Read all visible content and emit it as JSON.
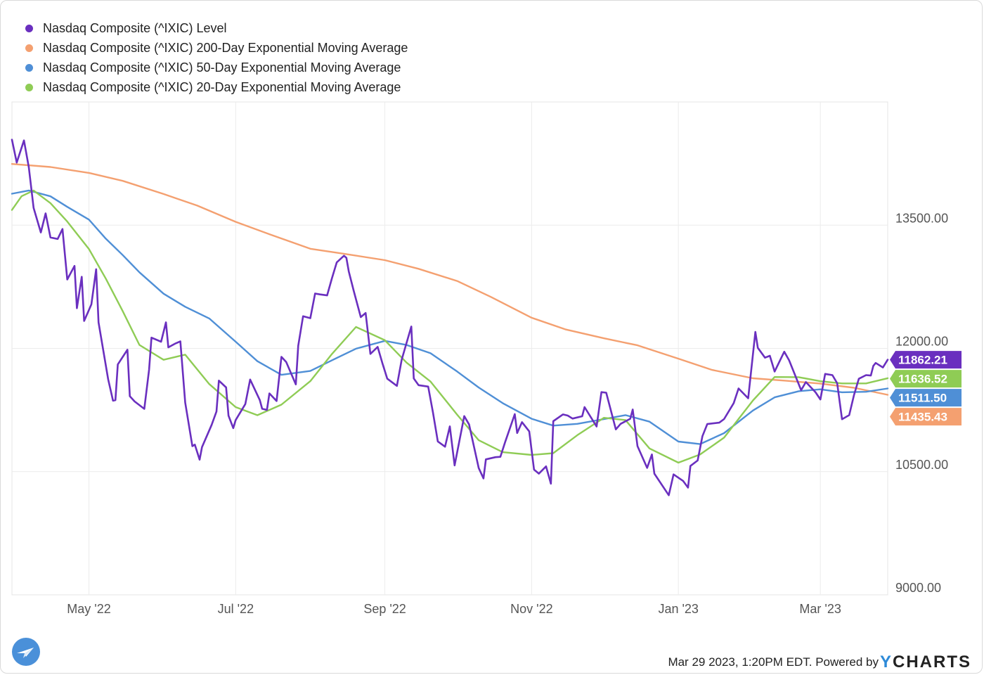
{
  "legend": [
    {
      "label": "Nasdaq Composite (^IXIC) Level",
      "color": "#6a2fbf"
    },
    {
      "label": "Nasdaq Composite (^IXIC) 200-Day Exponential Moving Average",
      "color": "#f4a070"
    },
    {
      "label": "Nasdaq Composite (^IXIC) 50-Day Exponential Moving Average",
      "color": "#4f8fd6"
    },
    {
      "label": "Nasdaq Composite (^IXIC) 20-Day Exponential Moving Average",
      "color": "#8fcc55"
    }
  ],
  "footer": {
    "timestamp": "Mar 29 2023, 1:20PM EDT. Powered by ",
    "brand_y": "Y",
    "brand_rest": "CHARTS"
  },
  "chart_data": {
    "type": "line",
    "title": "",
    "xlabel": "",
    "ylabel": "",
    "x_range": [
      "2022-03-30",
      "2023-03-29"
    ],
    "ylim": [
      9000,
      15000
    ],
    "yticks": [
      9000,
      10500,
      12000,
      13500
    ],
    "ytick_labels": [
      "9000.00",
      "10500.00",
      "12000.00",
      "13500.00"
    ],
    "xticks": [
      "2022-05-01",
      "2022-07-01",
      "2022-09-01",
      "2022-11-01",
      "2023-01-01",
      "2023-03-01"
    ],
    "xtick_labels": [
      "May '22",
      "Jul '22",
      "Sep '22",
      "Nov '22",
      "Jan '23",
      "Mar '23"
    ],
    "grid": true,
    "legend_position": "top-left",
    "series": [
      {
        "name": "Nasdaq Composite (^IXIC) Level",
        "color": "#6a2fbf",
        "last_label": "11862.21",
        "points": [
          [
            "2022-03-30",
            14540
          ],
          [
            "2022-04-01",
            14262
          ],
          [
            "2022-04-04",
            14532
          ],
          [
            "2022-04-06",
            14204
          ],
          [
            "2022-04-08",
            13711
          ],
          [
            "2022-04-11",
            13411
          ],
          [
            "2022-04-13",
            13643
          ],
          [
            "2022-04-15",
            13351
          ],
          [
            "2022-04-18",
            13332
          ],
          [
            "2022-04-20",
            13453
          ],
          [
            "2022-04-22",
            12839
          ],
          [
            "2022-04-25",
            13004
          ],
          [
            "2022-04-26",
            12490
          ],
          [
            "2022-04-28",
            12871
          ],
          [
            "2022-04-29",
            12334
          ],
          [
            "2022-05-02",
            12536
          ],
          [
            "2022-05-04",
            12964
          ],
          [
            "2022-05-05",
            12317
          ],
          [
            "2022-05-09",
            11623
          ],
          [
            "2022-05-11",
            11364
          ],
          [
            "2022-05-12",
            11370
          ],
          [
            "2022-05-13",
            11805
          ],
          [
            "2022-05-17",
            11984
          ],
          [
            "2022-05-18",
            11418
          ],
          [
            "2022-05-20",
            11354
          ],
          [
            "2022-05-24",
            11264
          ],
          [
            "2022-05-26",
            11740
          ],
          [
            "2022-05-27",
            12131
          ],
          [
            "2022-05-31",
            12081
          ],
          [
            "2022-06-02",
            12317
          ],
          [
            "2022-06-03",
            12013
          ],
          [
            "2022-06-06",
            12061
          ],
          [
            "2022-06-08",
            12086
          ],
          [
            "2022-06-10",
            11340
          ],
          [
            "2022-06-13",
            10810
          ],
          [
            "2022-06-14",
            10828
          ],
          [
            "2022-06-16",
            10646
          ],
          [
            "2022-06-17",
            10798
          ],
          [
            "2022-06-21",
            11069
          ],
          [
            "2022-06-23",
            11232
          ],
          [
            "2022-06-24",
            11608
          ],
          [
            "2022-06-27",
            11525
          ],
          [
            "2022-06-28",
            11182
          ],
          [
            "2022-06-30",
            11029
          ],
          [
            "2022-07-01",
            11128
          ],
          [
            "2022-07-05",
            11322
          ],
          [
            "2022-07-07",
            11621
          ],
          [
            "2022-07-11",
            11372
          ],
          [
            "2022-07-12",
            11265
          ],
          [
            "2022-07-14",
            11251
          ],
          [
            "2022-07-15",
            11452
          ],
          [
            "2022-07-18",
            11360
          ],
          [
            "2022-07-20",
            11897
          ],
          [
            "2022-07-22",
            11834
          ],
          [
            "2022-07-26",
            11562
          ],
          [
            "2022-07-27",
            12032
          ],
          [
            "2022-07-29",
            12391
          ],
          [
            "2022-08-01",
            12368
          ],
          [
            "2022-08-03",
            12668
          ],
          [
            "2022-08-05",
            12657
          ],
          [
            "2022-08-08",
            12645
          ],
          [
            "2022-08-10",
            12855
          ],
          [
            "2022-08-12",
            13047
          ],
          [
            "2022-08-15",
            13128
          ],
          [
            "2022-08-16",
            13103
          ],
          [
            "2022-08-17",
            12938
          ],
          [
            "2022-08-19",
            12706
          ],
          [
            "2022-08-22",
            12381
          ],
          [
            "2022-08-24",
            12431
          ],
          [
            "2022-08-26",
            11933
          ],
          [
            "2022-08-29",
            12018
          ],
          [
            "2022-08-31",
            11816
          ],
          [
            "2022-09-02",
            11631
          ],
          [
            "2022-09-06",
            11544
          ],
          [
            "2022-09-08",
            11862
          ],
          [
            "2022-09-12",
            12266
          ],
          [
            "2022-09-13",
            11634
          ],
          [
            "2022-09-15",
            11552
          ],
          [
            "2022-09-19",
            11535
          ],
          [
            "2022-09-21",
            11220
          ],
          [
            "2022-09-23",
            10868
          ],
          [
            "2022-09-26",
            10803
          ],
          [
            "2022-09-28",
            11051
          ],
          [
            "2022-09-30",
            10576
          ],
          [
            "2022-10-04",
            11176
          ],
          [
            "2022-10-06",
            11074
          ],
          [
            "2022-10-10",
            10543
          ],
          [
            "2022-10-12",
            10417
          ],
          [
            "2022-10-13",
            10649
          ],
          [
            "2022-10-17",
            10676
          ],
          [
            "2022-10-19",
            10680
          ],
          [
            "2022-10-21",
            10860
          ],
          [
            "2022-10-25",
            11200
          ],
          [
            "2022-10-26",
            10970
          ],
          [
            "2022-10-28",
            11102
          ],
          [
            "2022-10-31",
            10989
          ],
          [
            "2022-11-02",
            10524
          ],
          [
            "2022-11-04",
            10476
          ],
          [
            "2022-11-07",
            10564
          ],
          [
            "2022-11-09",
            10353
          ],
          [
            "2022-11-10",
            11114
          ],
          [
            "2022-11-14",
            11196
          ],
          [
            "2022-11-16",
            11183
          ],
          [
            "2022-11-18",
            11146
          ],
          [
            "2022-11-22",
            11174
          ],
          [
            "2022-11-23",
            11285
          ],
          [
            "2022-11-28",
            11049
          ],
          [
            "2022-11-30",
            11468
          ],
          [
            "2022-12-02",
            11461
          ],
          [
            "2022-12-06",
            11014
          ],
          [
            "2022-12-08",
            11082
          ],
          [
            "2022-12-12",
            11143
          ],
          [
            "2022-12-13",
            11256
          ],
          [
            "2022-12-15",
            10810
          ],
          [
            "2022-12-19",
            10546
          ],
          [
            "2022-12-21",
            10709
          ],
          [
            "2022-12-22",
            10476
          ],
          [
            "2022-12-28",
            10213
          ],
          [
            "2022-12-30",
            10466
          ],
          [
            "2023-01-03",
            10386
          ],
          [
            "2023-01-05",
            10305
          ],
          [
            "2023-01-06",
            10569
          ],
          [
            "2023-01-09",
            10636
          ],
          [
            "2023-01-11",
            10932
          ],
          [
            "2023-01-13",
            11079
          ],
          [
            "2023-01-18",
            11096
          ],
          [
            "2023-01-20",
            11140
          ],
          [
            "2023-01-24",
            11334
          ],
          [
            "2023-01-26",
            11512
          ],
          [
            "2023-01-30",
            11393
          ],
          [
            "2023-02-02",
            12200
          ],
          [
            "2023-02-03",
            12007
          ],
          [
            "2023-02-06",
            11887
          ],
          [
            "2023-02-08",
            11910
          ],
          [
            "2023-02-10",
            11718
          ],
          [
            "2023-02-14",
            11960
          ],
          [
            "2023-02-16",
            11855
          ],
          [
            "2023-02-21",
            11492
          ],
          [
            "2023-02-23",
            11590
          ],
          [
            "2023-02-27",
            11466
          ],
          [
            "2023-03-01",
            11379
          ],
          [
            "2023-03-03",
            11689
          ],
          [
            "2023-03-06",
            11675
          ],
          [
            "2023-03-08",
            11576
          ],
          [
            "2023-03-10",
            11138
          ],
          [
            "2023-03-13",
            11188
          ],
          [
            "2023-03-15",
            11434
          ],
          [
            "2023-03-17",
            11630
          ],
          [
            "2023-03-20",
            11675
          ],
          [
            "2023-03-22",
            11670
          ],
          [
            "2023-03-23",
            11787
          ],
          [
            "2023-03-24",
            11823
          ],
          [
            "2023-03-27",
            11768
          ],
          [
            "2023-03-29",
            11862
          ]
        ]
      },
      {
        "name": "Nasdaq Composite (^IXIC) 200-Day Exponential Moving Average",
        "color": "#f4a070",
        "last_label": "11435.43",
        "points": [
          [
            "2022-03-30",
            14245
          ],
          [
            "2022-04-15",
            14208
          ],
          [
            "2022-05-01",
            14136
          ],
          [
            "2022-05-15",
            14040
          ],
          [
            "2022-06-01",
            13880
          ],
          [
            "2022-06-15",
            13738
          ],
          [
            "2022-07-01",
            13541
          ],
          [
            "2022-07-15",
            13390
          ],
          [
            "2022-08-01",
            13213
          ],
          [
            "2022-08-15",
            13152
          ],
          [
            "2022-09-01",
            13074
          ],
          [
            "2022-09-15",
            12969
          ],
          [
            "2022-10-01",
            12821
          ],
          [
            "2022-10-15",
            12627
          ],
          [
            "2022-11-01",
            12373
          ],
          [
            "2022-11-15",
            12232
          ],
          [
            "2022-12-01",
            12123
          ],
          [
            "2022-12-15",
            12038
          ],
          [
            "2023-01-01",
            11875
          ],
          [
            "2023-01-15",
            11738
          ],
          [
            "2023-02-01",
            11636
          ],
          [
            "2023-02-15",
            11605
          ],
          [
            "2023-03-01",
            11571
          ],
          [
            "2023-03-15",
            11521
          ],
          [
            "2023-03-29",
            11435
          ]
        ]
      },
      {
        "name": "Nasdaq Composite (^IXIC) 50-Day Exponential Moving Average",
        "color": "#4f8fd6",
        "last_label": "11511.50",
        "points": [
          [
            "2022-03-30",
            13883
          ],
          [
            "2022-04-06",
            13922
          ],
          [
            "2022-04-15",
            13851
          ],
          [
            "2022-04-22",
            13723
          ],
          [
            "2022-05-01",
            13568
          ],
          [
            "2022-05-08",
            13336
          ],
          [
            "2022-05-15",
            13137
          ],
          [
            "2022-05-22",
            12926
          ],
          [
            "2022-06-01",
            12666
          ],
          [
            "2022-06-10",
            12507
          ],
          [
            "2022-06-20",
            12365
          ],
          [
            "2022-07-01",
            12081
          ],
          [
            "2022-07-10",
            11844
          ],
          [
            "2022-07-20",
            11678
          ],
          [
            "2022-08-01",
            11725
          ],
          [
            "2022-08-10",
            11855
          ],
          [
            "2022-08-20",
            11997
          ],
          [
            "2022-09-01",
            12092
          ],
          [
            "2022-09-10",
            12042
          ],
          [
            "2022-09-20",
            11941
          ],
          [
            "2022-10-01",
            11719
          ],
          [
            "2022-10-10",
            11524
          ],
          [
            "2022-10-20",
            11333
          ],
          [
            "2022-11-01",
            11143
          ],
          [
            "2022-11-10",
            11060
          ],
          [
            "2022-11-20",
            11082
          ],
          [
            "2022-12-01",
            11139
          ],
          [
            "2022-12-10",
            11188
          ],
          [
            "2022-12-20",
            11108
          ],
          [
            "2023-01-01",
            10866
          ],
          [
            "2023-01-10",
            10835
          ],
          [
            "2023-01-20",
            10969
          ],
          [
            "2023-02-01",
            11244
          ],
          [
            "2023-02-10",
            11404
          ],
          [
            "2023-02-20",
            11479
          ],
          [
            "2023-03-01",
            11502
          ],
          [
            "2023-03-10",
            11466
          ],
          [
            "2023-03-20",
            11472
          ],
          [
            "2023-03-29",
            11512
          ]
        ]
      },
      {
        "name": "Nasdaq Composite (^IXIC) 20-Day Exponential Moving Average",
        "color": "#8fcc55",
        "last_label": "11636.52",
        "points": [
          [
            "2022-03-30",
            13685
          ],
          [
            "2022-04-03",
            13852
          ],
          [
            "2022-04-08",
            13922
          ],
          [
            "2022-04-15",
            13768
          ],
          [
            "2022-04-22",
            13544
          ],
          [
            "2022-05-01",
            13210
          ],
          [
            "2022-05-08",
            12850
          ],
          [
            "2022-05-15",
            12455
          ],
          [
            "2022-05-22",
            12042
          ],
          [
            "2022-06-01",
            11861
          ],
          [
            "2022-06-10",
            11924
          ],
          [
            "2022-06-20",
            11566
          ],
          [
            "2022-07-01",
            11285
          ],
          [
            "2022-07-10",
            11187
          ],
          [
            "2022-07-20",
            11315
          ],
          [
            "2022-08-01",
            11601
          ],
          [
            "2022-08-10",
            11932
          ],
          [
            "2022-08-20",
            12261
          ],
          [
            "2022-09-01",
            12099
          ],
          [
            "2022-09-10",
            11827
          ],
          [
            "2022-09-20",
            11596
          ],
          [
            "2022-10-01",
            11195
          ],
          [
            "2022-10-10",
            10882
          ],
          [
            "2022-10-20",
            10737
          ],
          [
            "2022-11-01",
            10703
          ],
          [
            "2022-11-10",
            10725
          ],
          [
            "2022-11-20",
            10944
          ],
          [
            "2022-12-01",
            11155
          ],
          [
            "2022-12-10",
            11128
          ],
          [
            "2022-12-20",
            10782
          ],
          [
            "2023-01-01",
            10609
          ],
          [
            "2023-01-10",
            10708
          ],
          [
            "2023-01-20",
            10914
          ],
          [
            "2023-02-01",
            11367
          ],
          [
            "2023-02-10",
            11652
          ],
          [
            "2023-02-20",
            11650
          ],
          [
            "2023-03-01",
            11600
          ],
          [
            "2023-03-10",
            11574
          ],
          [
            "2023-03-20",
            11574
          ],
          [
            "2023-03-29",
            11637
          ]
        ]
      }
    ]
  }
}
